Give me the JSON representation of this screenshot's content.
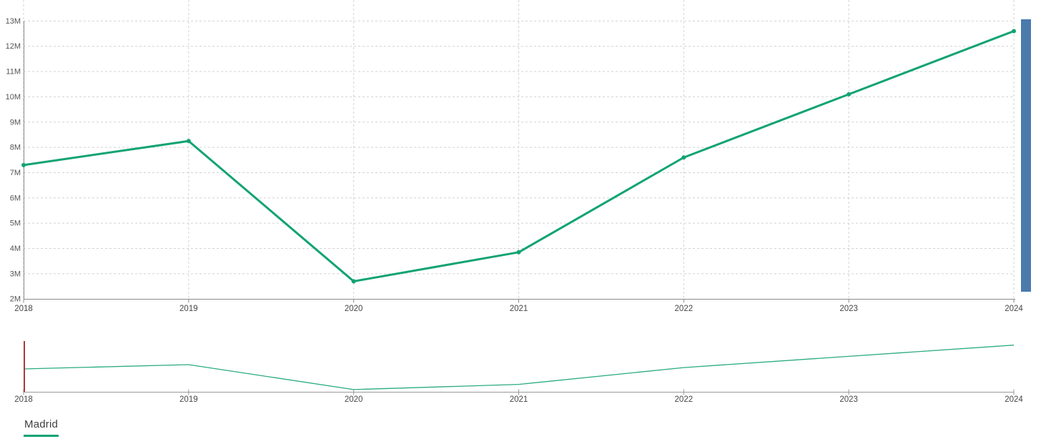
{
  "colors": {
    "series": "#12a373",
    "navigator_line": "#2aab80",
    "scrollbar_thumb": "#4b7aad",
    "navigator_handle_red": "#a93a32",
    "grid": "#d2d2d2",
    "axis": "#8a8a8a",
    "navigator_axis": "#999999"
  },
  "legend": {
    "items": [
      {
        "label": "Madrid",
        "color": "#12a373"
      }
    ]
  },
  "chart_data": {
    "type": "line",
    "title": "",
    "xlabel": "",
    "ylabel": "",
    "x": [
      "2018",
      "2019",
      "2020",
      "2021",
      "2022",
      "2023",
      "2024"
    ],
    "series": [
      {
        "name": "Madrid",
        "color": "#12a373",
        "values_millions": [
          7.3,
          8.25,
          2.7,
          3.85,
          7.6,
          10.1,
          12.6
        ]
      }
    ],
    "ylim_millions": [
      2,
      13
    ],
    "y_tick_labels": [
      "2M",
      "3M",
      "4M",
      "5M",
      "6M",
      "7M",
      "8M",
      "9M",
      "10M",
      "11M",
      "12M",
      "13M"
    ],
    "grid": "dashed both axes",
    "legend_position": "bottom-left",
    "navigator": {
      "present": true,
      "x_labels": [
        "2018",
        "2019",
        "2020",
        "2021",
        "2022",
        "2023",
        "2024"
      ],
      "handle_position": "left"
    },
    "scrollbar": {
      "present": true,
      "orientation": "vertical",
      "position": "right-edge-of-plot"
    }
  }
}
